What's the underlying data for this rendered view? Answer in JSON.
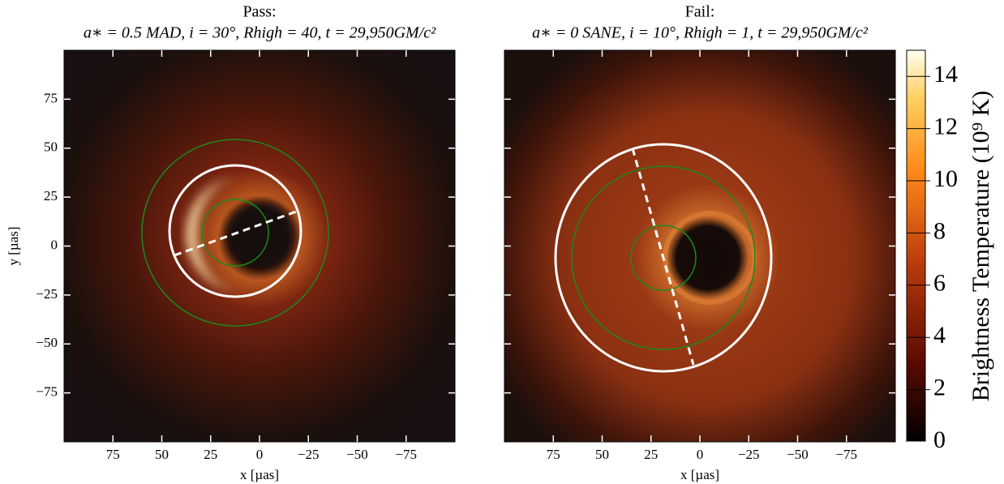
{
  "chart_data": [
    {
      "type": "image",
      "title": "Pass:",
      "subtitle": "a∗ = 0.5 MAD, i = 30°, Rhigh = 40, t = 29,950GM/c²",
      "x_label": "x [µas]",
      "y_label": "y [µas]",
      "xlim": [
        100,
        -100
      ],
      "ylim": [
        -100,
        100
      ],
      "xticks": [
        75,
        50,
        25,
        0,
        {
          "value": -25,
          "label": "−25"
        },
        {
          "value": -50,
          "label": "−50"
        },
        {
          "value": -75,
          "label": "−75"
        }
      ],
      "yticks": [
        75,
        50,
        25,
        0,
        {
          "value": -25,
          "label": "−25"
        },
        {
          "value": -50,
          "label": "−50"
        },
        {
          "value": -75,
          "label": "−75"
        }
      ]
    },
    {
      "type": "image",
      "title": "Fail:",
      "subtitle": "a∗ = 0 SANE, i = 10°, Rhigh = 1, t = 29,950GM/c²",
      "x_label": "x [µas]",
      "xlim": [
        100,
        -100
      ],
      "ylim": [
        -100,
        100
      ],
      "xticks": [
        75,
        50,
        25,
        0,
        {
          "value": -25,
          "label": "−25"
        },
        {
          "value": -50,
          "label": "−50"
        },
        {
          "value": -75,
          "label": "−75"
        }
      ],
      "yticks": [
        75,
        50,
        25,
        0,
        -25,
        -50,
        -75
      ],
      "colorbar": {
        "label": "Brightness Temperature (10⁹ K)",
        "lim": [
          0,
          15
        ],
        "ticks": [
          0,
          2,
          4,
          6,
          8,
          10,
          12,
          14
        ]
      }
    }
  ]
}
